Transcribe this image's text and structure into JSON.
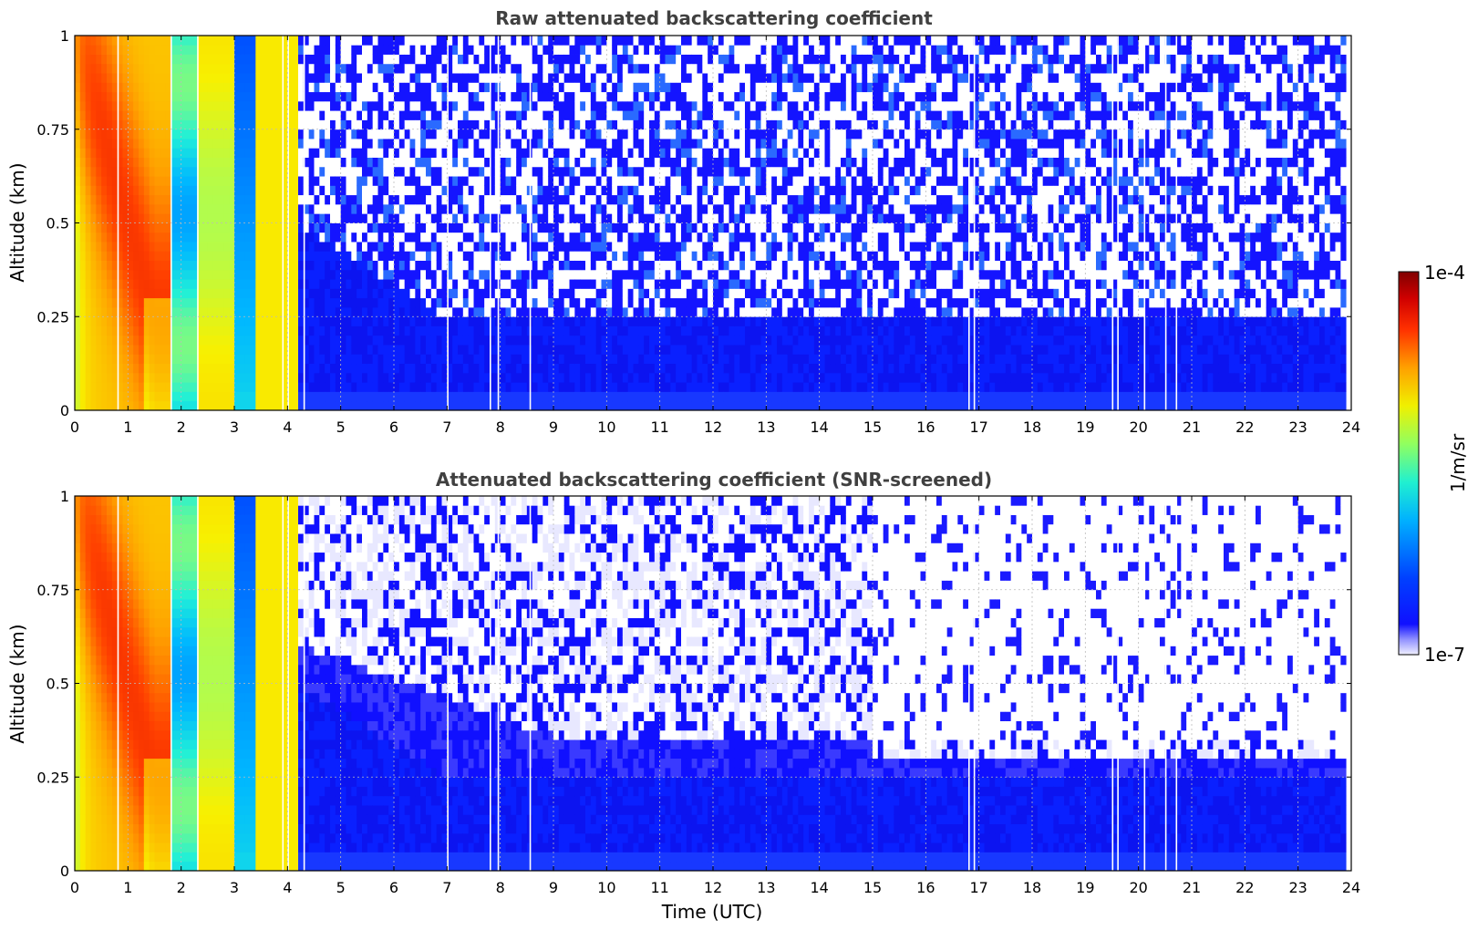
{
  "chart_data": [
    {
      "type": "heatmap",
      "title": "Raw attenuated backscattering coefficient",
      "ylabel": "Altitude (km)",
      "xlabel": "",
      "xlim": [
        0,
        24
      ],
      "ylim": [
        0,
        1
      ],
      "x_ticks": [
        0,
        1,
        2,
        3,
        4,
        5,
        6,
        7,
        8,
        9,
        10,
        11,
        12,
        13,
        14,
        15,
        16,
        17,
        18,
        19,
        20,
        21,
        22,
        23,
        24
      ],
      "y_ticks": [
        0,
        0.25,
        0.5,
        0.75,
        1
      ],
      "y_tick_labels": [
        "0",
        "0.25",
        "0.5",
        "0.75",
        "1"
      ],
      "grid": true,
      "colorscale": "jet (log)",
      "screened": false
    },
    {
      "type": "heatmap",
      "title": "Attenuated backscattering coefficient (SNR-screened)",
      "ylabel": "Altitude (km)",
      "xlabel": "Time (UTC)",
      "xlim": [
        0,
        24
      ],
      "ylim": [
        0,
        1
      ],
      "x_ticks": [
        0,
        1,
        2,
        3,
        4,
        5,
        6,
        7,
        8,
        9,
        10,
        11,
        12,
        13,
        14,
        15,
        16,
        17,
        18,
        19,
        20,
        21,
        22,
        23,
        24
      ],
      "y_ticks": [
        0,
        0.25,
        0.5,
        0.75,
        1
      ],
      "y_tick_labels": [
        "0",
        "0.25",
        "0.5",
        "0.75",
        "1"
      ],
      "grid": true,
      "colorscale": "jet (log)",
      "screened": true
    }
  ],
  "colorbar": {
    "label": "1/m/sr",
    "max_label": "1e-4",
    "min_label": "1e-7",
    "scale": "log"
  }
}
